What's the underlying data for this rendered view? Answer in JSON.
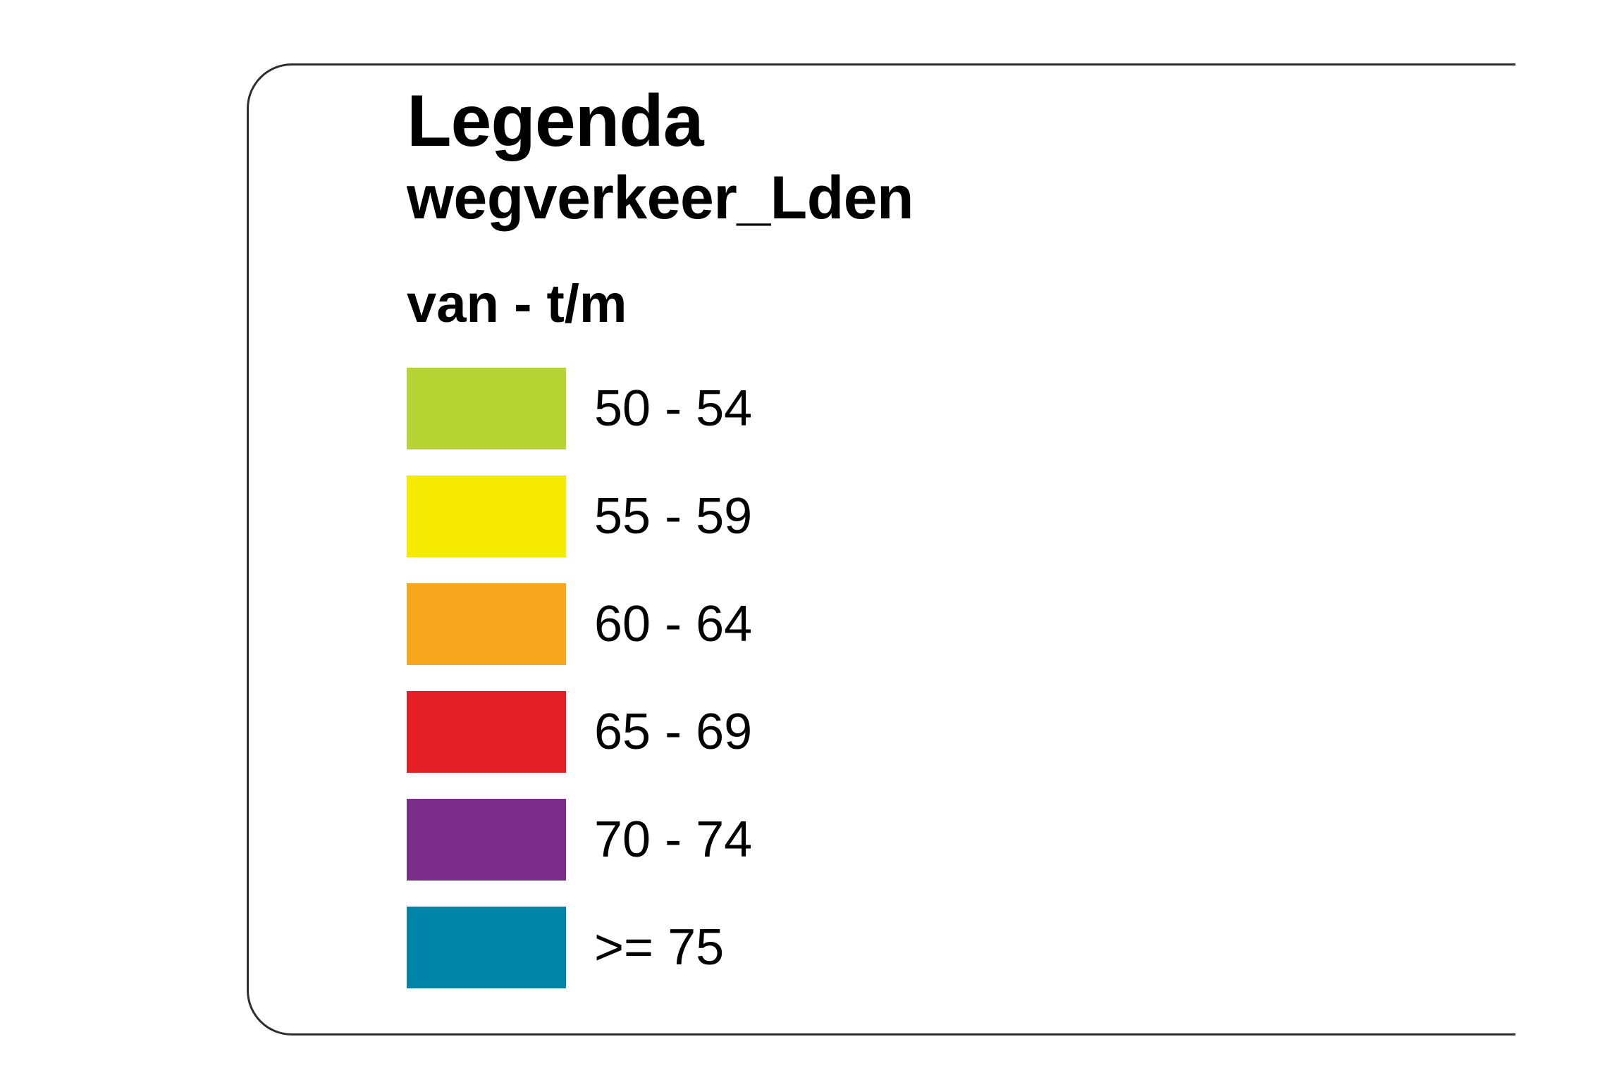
{
  "legend": {
    "title": "Legenda",
    "layer": "wegverkeer_Lden",
    "column_header": "van - t/m",
    "items": [
      {
        "label": "50 - 54",
        "color": "#b6d433"
      },
      {
        "label": "55 - 59",
        "color": "#f6ea00"
      },
      {
        "label": "60 - 64",
        "color": "#f9a61f"
      },
      {
        "label": "65 - 69",
        "color": "#e31e24"
      },
      {
        "label": "70 - 74",
        "color": "#7b2d8b"
      },
      {
        "label": ">= 75",
        "color": "#0085a9"
      }
    ]
  }
}
